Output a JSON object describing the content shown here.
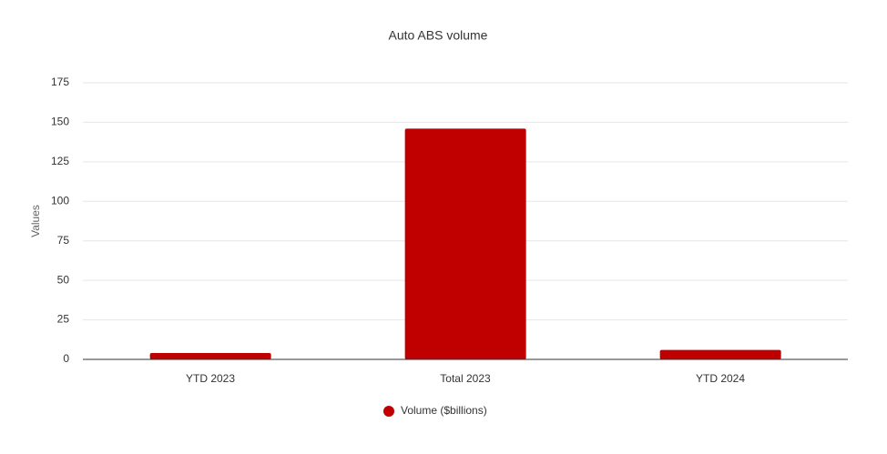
{
  "chart_data": {
    "type": "bar",
    "title": "Auto ABS volume",
    "y_label": "Values",
    "categories": [
      "YTD 2023",
      "Total 2023",
      "YTD 2024"
    ],
    "series": [
      {
        "name": "Volume ($billions)",
        "color": "#c00000",
        "values": [
          4,
          146,
          6
        ]
      }
    ],
    "ylim": [
      0,
      175
    ],
    "yticks": [
      0,
      25,
      50,
      75,
      100,
      125,
      150,
      175
    ],
    "grid": true,
    "legend": "bottom"
  }
}
